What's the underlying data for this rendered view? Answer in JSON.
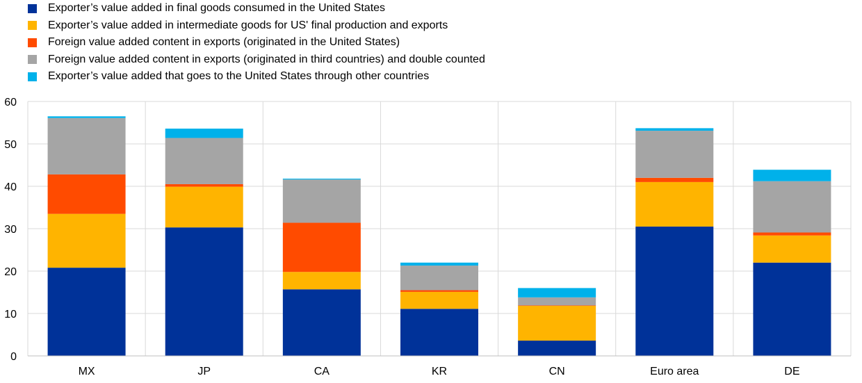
{
  "chart_data": {
    "type": "bar",
    "stacked": true,
    "categories": [
      "MX",
      "JP",
      "CA",
      "KR",
      "CN",
      "Euro area",
      "DE"
    ],
    "series": [
      {
        "name": "Exporter’s value added in final goods consumed in the United States",
        "color": "#003299",
        "values": [
          20.8,
          30.3,
          15.7,
          11.1,
          3.6,
          30.5,
          22.0
        ]
      },
      {
        "name": "Exporter’s value added in intermediate goods for US' final production and exports",
        "color": "#FFB400",
        "values": [
          12.7,
          9.6,
          4.1,
          4.0,
          8.2,
          10.5,
          6.4
        ]
      },
      {
        "name": "Foreign value added content in exports (originated in the United States)",
        "color": "#FF4B00",
        "values": [
          9.3,
          0.6,
          11.6,
          0.4,
          0.1,
          1.0,
          0.7
        ]
      },
      {
        "name": "Foreign value added content in exports (originated in third countries) and double counted",
        "color": "#A5A5A5",
        "values": [
          13.3,
          10.9,
          10.2,
          5.8,
          1.9,
          11.1,
          12.1
        ]
      },
      {
        "name": "Exporter’s value added that goes to the United States through other countries",
        "color": "#00B1EA",
        "values": [
          0.4,
          2.2,
          0.2,
          0.7,
          2.2,
          0.6,
          2.7
        ]
      }
    ],
    "ylim": [
      0,
      60
    ],
    "yticks": [
      "0",
      "10",
      "20",
      "30",
      "40",
      "50",
      "60"
    ],
    "grid": true,
    "legend_position": "top-left"
  }
}
